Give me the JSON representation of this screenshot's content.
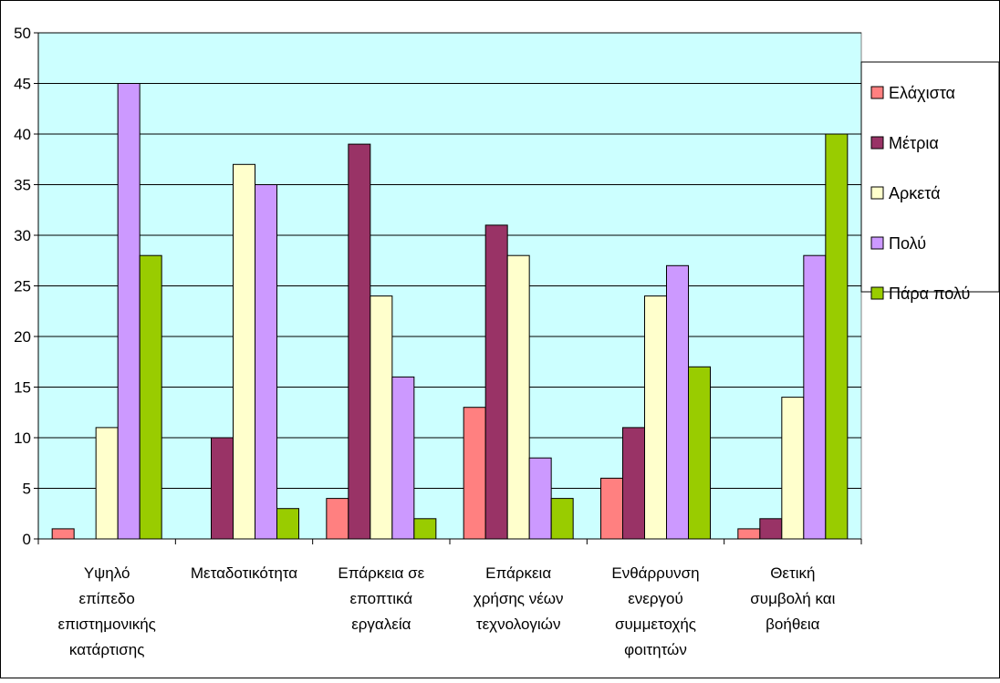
{
  "chart_data": {
    "type": "bar",
    "title": "",
    "xlabel": "",
    "ylabel": "",
    "ylim": [
      0,
      50
    ],
    "yticks": [
      0,
      5,
      10,
      15,
      20,
      25,
      30,
      35,
      40,
      45,
      50
    ],
    "grid": "horizontal",
    "legend_position": "right",
    "plot_background": "#ccffff",
    "categories": [
      [
        "Υψηλό",
        "επίπεδο",
        "επιστημονικής",
        "κατάρτισης"
      ],
      [
        "Μεταδοτικότητα"
      ],
      [
        "Επάρκεια σε",
        "εποπτικά",
        "εργαλεία"
      ],
      [
        "Επάρκεια",
        "χρήσης νέων",
        "τεχνολογιών"
      ],
      [
        "Ενθάρρυνση",
        "ενεργού",
        "συμμετοχής",
        "φοιτητών"
      ],
      [
        "Θετική",
        "συμβολή και",
        "βοήθεια"
      ]
    ],
    "series": [
      {
        "name": "Ελάχιστα",
        "color": "#ff8080",
        "values": [
          1,
          0,
          4,
          13,
          6,
          1
        ]
      },
      {
        "name": "Μέτρια",
        "color": "#993366",
        "values": [
          0,
          10,
          39,
          31,
          11,
          2
        ]
      },
      {
        "name": "Αρκετά",
        "color": "#ffffcc",
        "values": [
          11,
          37,
          24,
          28,
          24,
          14
        ]
      },
      {
        "name": "Πολύ",
        "color": "#cc99ff",
        "values": [
          45,
          35,
          16,
          8,
          27,
          28
        ]
      },
      {
        "name": "Πάρα πολύ",
        "color": "#99cc00",
        "values": [
          28,
          3,
          2,
          4,
          17,
          40
        ]
      }
    ]
  }
}
